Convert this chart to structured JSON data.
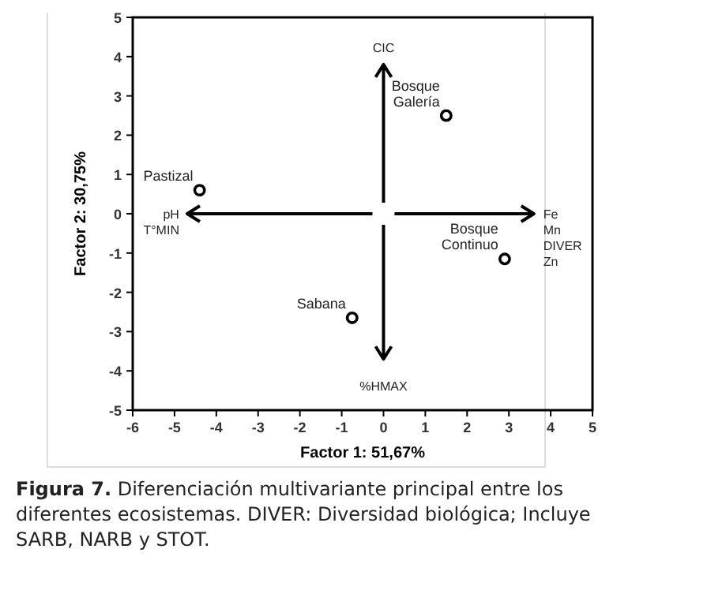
{
  "chart_data": {
    "type": "scatter",
    "xlabel": "Factor 1: 51,67%",
    "ylabel": "Factor 2: 30,75%",
    "x": [
      -4.4,
      1.5,
      2.9,
      -0.75
    ],
    "series": [
      {
        "color": "#000000",
        "values": [
          0.6,
          2.5,
          -1.15,
          -2.65
        ]
      }
    ],
    "marker": "circle",
    "xlim": [
      -6,
      5
    ],
    "xticks": [
      -6,
      -5,
      -4,
      -3,
      -2,
      -1,
      0,
      1,
      2,
      3,
      4,
      5
    ],
    "ylim": [
      -5,
      5
    ],
    "yticks": [
      -5,
      -4,
      -3,
      -2,
      -1,
      0,
      1,
      2,
      3,
      4,
      5
    ],
    "annotations": [
      {
        "text": "Pastizal",
        "x": -4.4,
        "y": 0.6
      },
      {
        "text": "Bosque\nGalería",
        "x": 1.5,
        "y": 2.5
      },
      {
        "text": "Bosque\nContinuo",
        "x": 2.9,
        "y": -1.15
      },
      {
        "text": "Sabana",
        "x": -0.75,
        "y": -2.65
      },
      "CIC",
      "%HMAX",
      "pH\nT°MIN",
      "Fe\nMn\nDIVER\nZn",
      "Figura 7. Diferenciación multivariante principal entre los diferentes ecosistemas. DIVER: Diversidad biológica; Incluye SARB, NARB y STOT."
    ]
  }
}
